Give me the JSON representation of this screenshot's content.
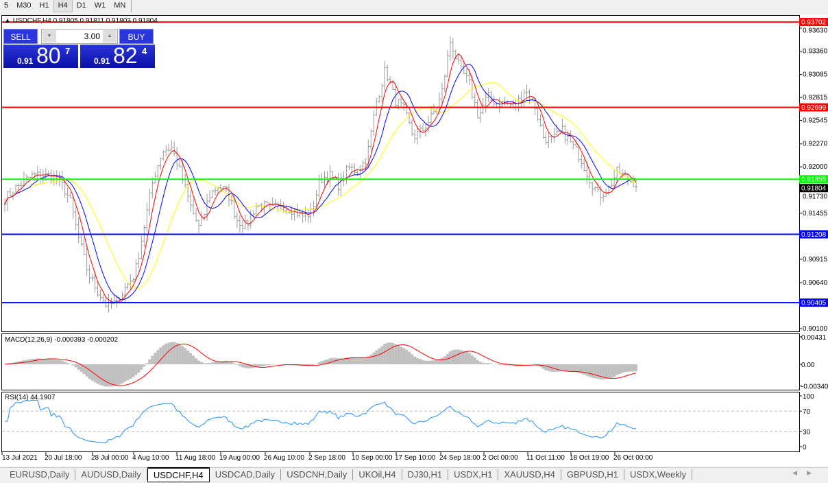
{
  "timeframes": [
    {
      "label": "5",
      "active": false
    },
    {
      "label": "M30",
      "active": false
    },
    {
      "label": "H1",
      "active": false
    },
    {
      "label": "H4",
      "active": true
    },
    {
      "label": "D1",
      "active": false
    },
    {
      "label": "W1",
      "active": false
    },
    {
      "label": "MN",
      "active": false
    }
  ],
  "chart_title": "USDCHF,H4  0.91805 0.91811 0.91803 0.91804",
  "trade_panel": {
    "sell_label": "SELL",
    "buy_label": "BUY",
    "lot": "3.00",
    "sell_small": "0.91",
    "sell_big": "80",
    "sell_sup": "7",
    "buy_small": "0.91",
    "buy_big": "82",
    "buy_sup": "4"
  },
  "colors": {
    "fast_ma": "#ff0000",
    "mid_ma": "#0000ff",
    "slow_ma": "#ffff00",
    "macd_hist": "#c0c0c0",
    "macd_signal": "#ff0000",
    "rsi": "#1e90ff"
  },
  "chart_data": [
    {
      "type": "ohlc",
      "symbol": "USDCHF",
      "timeframe": "H4",
      "ylim": [
        0.9008,
        0.9382
      ],
      "price_ticks": [
        "0.93630",
        "0.93360",
        "0.93085",
        "0.92815",
        "0.92545",
        "0.92270",
        "0.92000",
        "0.91730",
        "0.91455",
        "0.90915",
        "0.90640",
        "0.90100"
      ],
      "x_ticks": [
        "13 Jul 2021",
        "20 Jul 18:00",
        "28 Jul 00:00",
        "4 Aug 10:00",
        "11 Aug 18:00",
        "19 Aug 00:00",
        "26 Aug 10:00",
        "2 Sep 18:00",
        "10 Sep 00:00",
        "17 Sep 10:00",
        "24 Sep 18:00",
        "2 Oct 00:00",
        "11 Oct 11:00",
        "18 Oct 19:00",
        "26 Oct 00:00"
      ],
      "approx_close_path": [
        0.9162,
        0.9174,
        0.9182,
        0.919,
        0.919,
        0.919,
        0.9182,
        0.9162,
        0.9114,
        0.9074,
        0.9054,
        0.9037,
        0.9041,
        0.9058,
        0.9074,
        0.913,
        0.9187,
        0.9219,
        0.9223,
        0.919,
        0.9154,
        0.9126,
        0.9166,
        0.9178,
        0.917,
        0.9138,
        0.913,
        0.9154,
        0.9154,
        0.915,
        0.9154,
        0.915,
        0.9142,
        0.9146,
        0.9186,
        0.919,
        0.9178,
        0.9199,
        0.9195,
        0.9211,
        0.9275,
        0.9315,
        0.9279,
        0.9267,
        0.9235,
        0.9243,
        0.9259,
        0.9283,
        0.9348,
        0.9315,
        0.9299,
        0.9259,
        0.9283,
        0.9275,
        0.9275,
        0.9271,
        0.9291,
        0.9275,
        0.9235,
        0.9231,
        0.9243,
        0.9227,
        0.9211,
        0.9186,
        0.9166,
        0.9174,
        0.9195,
        0.9186,
        0.918
      ],
      "horizontal_lines": [
        {
          "price": "0.93702",
          "color": "#ff0000"
        },
        {
          "price": "0.92699",
          "color": "#ff0000"
        },
        {
          "price": "0.91855",
          "color": "#00ff00"
        },
        {
          "price": "0.91208",
          "color": "#0000ff"
        },
        {
          "price": "0.90405",
          "color": "#0000ff"
        }
      ],
      "current_price": "0.91804"
    },
    {
      "type": "bar",
      "name": "MACD(12,26,9) -0.000393 -0.000202",
      "ticks": [
        "0.00431",
        "0.00",
        "-0.003405"
      ],
      "ylim": [
        -0.003405,
        0.00431
      ]
    },
    {
      "type": "line",
      "name": "RSI(14) 44.1907",
      "ticks": [
        "100",
        "70",
        "30",
        "0"
      ],
      "levels": [
        70,
        30
      ],
      "ylim": [
        0,
        100
      ]
    }
  ],
  "tabs": [
    {
      "label": "EURUSD,Daily",
      "active": false
    },
    {
      "label": "AUDUSD,Daily",
      "active": false
    },
    {
      "label": "USDCHF,H4",
      "active": true
    },
    {
      "label": "USDCAD,Daily",
      "active": false
    },
    {
      "label": "USDCNH,Daily",
      "active": false
    },
    {
      "label": "UKOil,H4",
      "active": false
    },
    {
      "label": "DJ30,H1",
      "active": false
    },
    {
      "label": "USDX,H1",
      "active": false
    },
    {
      "label": "XAUUSD,H4",
      "active": false
    },
    {
      "label": "GBPUSD,H1",
      "active": false
    },
    {
      "label": "USDX,Weekly",
      "active": false
    }
  ]
}
